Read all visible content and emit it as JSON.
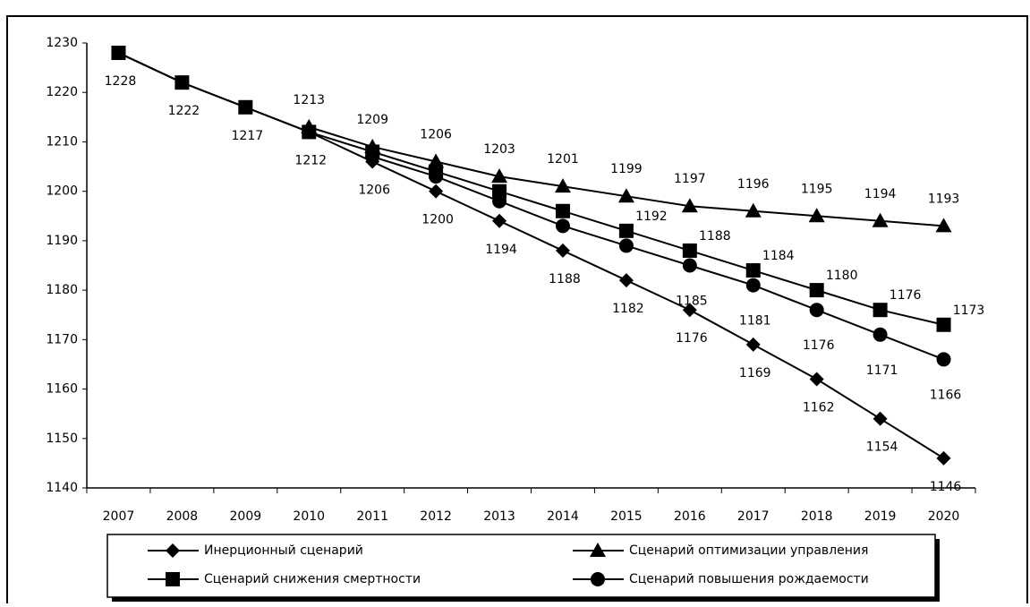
{
  "chart_data": {
    "type": "line",
    "x": [
      2007,
      2008,
      2009,
      2010,
      2011,
      2012,
      2013,
      2014,
      2015,
      2016,
      2017,
      2018,
      2019,
      2020
    ],
    "series": [
      {
        "name": "Инерционный сценарий",
        "color": "#000000",
        "marker": "diamond",
        "values": [
          1228,
          1222,
          1217,
          1212,
          1206,
          1200,
          1194,
          1188,
          1182,
          1176,
          1169,
          1162,
          1154,
          1146
        ],
        "value_labels": [
          1228,
          1222,
          1217,
          1212,
          1206,
          1200,
          1194,
          1188,
          1182,
          1176,
          1169,
          1162,
          1154,
          1146
        ]
      },
      {
        "name": "Сценарий оптимизации управления",
        "color": "#000000",
        "marker": "triangle",
        "values": [
          null,
          null,
          null,
          1213,
          1209,
          1206,
          1203,
          1201,
          1199,
          1197,
          1196,
          1195,
          1194,
          1193
        ],
        "value_labels": [
          null,
          null,
          null,
          1213,
          1209,
          1206,
          1203,
          1201,
          1199,
          1197,
          1196,
          1195,
          1194,
          1193
        ]
      },
      {
        "name": "Сценарий снижения смертности",
        "color": "#000000",
        "marker": "square",
        "values": [
          1228,
          1222,
          1217,
          1212,
          1208,
          1204,
          1200,
          1196,
          1192,
          1188,
          1184,
          1180,
          1176,
          1173
        ],
        "value_labels": [
          null,
          null,
          null,
          null,
          null,
          null,
          null,
          null,
          1192,
          1188,
          1184,
          1180,
          1176,
          1173
        ]
      },
      {
        "name": "Сценарий повышения рождаемости",
        "color": "#000000",
        "marker": "circle",
        "values": [
          null,
          null,
          null,
          null,
          1207,
          1203,
          1198,
          1193,
          1189,
          1185,
          1181,
          1176,
          1171,
          1166
        ],
        "value_labels": [
          null,
          null,
          null,
          null,
          null,
          null,
          null,
          null,
          null,
          1185,
          1181,
          1176,
          1171,
          1166
        ]
      }
    ],
    "ylim": [
      1140,
      1230
    ],
    "yticks": [
      1140,
      1150,
      1160,
      1170,
      1180,
      1190,
      1200,
      1210,
      1220,
      1230
    ]
  }
}
